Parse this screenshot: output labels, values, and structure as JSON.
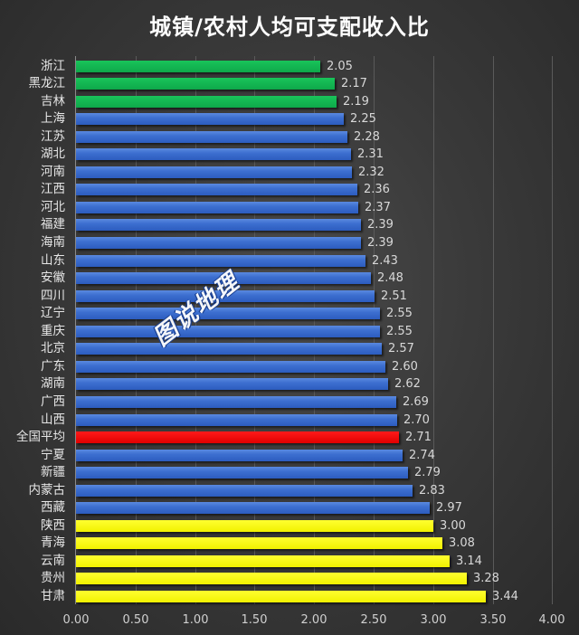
{
  "title": "城镇/农村人均可支配收入比",
  "watermark": "图说地理",
  "colors": {
    "green": "#12b851",
    "blue": "#3b6cd0",
    "red": "#ff0000",
    "yellow": "#ffff00",
    "background": "#3a3a3a",
    "text": "#e6e6e6"
  },
  "x_axis": {
    "ticks": [
      "0.00",
      "0.50",
      "1.00",
      "1.50",
      "2.00",
      "2.50",
      "3.00",
      "3.50",
      "4.00"
    ]
  },
  "chart_data": {
    "type": "bar",
    "orientation": "horizontal",
    "title": "城镇/农村人均可支配收入比",
    "xlabel": "",
    "ylabel": "",
    "xlim": [
      0,
      4
    ],
    "x_ticks": [
      0,
      0.5,
      1.0,
      1.5,
      2.0,
      2.5,
      3.0,
      3.5,
      4.0
    ],
    "grid": true,
    "legend": null,
    "categories": [
      "浙江",
      "黑龙江",
      "吉林",
      "上海",
      "江苏",
      "湖北",
      "河南",
      "江西",
      "河北",
      "福建",
      "海南",
      "山东",
      "安徽",
      "四川",
      "辽宁",
      "重庆",
      "北京",
      "广东",
      "湖南",
      "广西",
      "山西",
      "全国平均",
      "宁夏",
      "新疆",
      "内蒙古",
      "西藏",
      "陕西",
      "青海",
      "云南",
      "贵州",
      "甘肃"
    ],
    "values": [
      2.05,
      2.17,
      2.19,
      2.25,
      2.28,
      2.31,
      2.32,
      2.36,
      2.37,
      2.39,
      2.39,
      2.43,
      2.48,
      2.51,
      2.55,
      2.55,
      2.57,
      2.6,
      2.62,
      2.69,
      2.7,
      2.71,
      2.74,
      2.79,
      2.83,
      2.97,
      3.0,
      3.08,
      3.14,
      3.28,
      3.44
    ],
    "labels": [
      "2.05",
      "2.17",
      "2.19",
      "2.25",
      "2.28",
      "2.31",
      "2.32",
      "2.36",
      "2.37",
      "2.39",
      "2.39",
      "2.43",
      "2.48",
      "2.51",
      "2.55",
      "2.55",
      "2.57",
      "2.60",
      "2.62",
      "2.69",
      "2.70",
      "2.71",
      "2.74",
      "2.79",
      "2.83",
      "2.97",
      "3.00",
      "3.08",
      "3.14",
      "3.28",
      "3.44"
    ],
    "bar_colors": [
      "green",
      "green",
      "green",
      "blue",
      "blue",
      "blue",
      "blue",
      "blue",
      "blue",
      "blue",
      "blue",
      "blue",
      "blue",
      "blue",
      "blue",
      "blue",
      "blue",
      "blue",
      "blue",
      "blue",
      "blue",
      "red",
      "blue",
      "blue",
      "blue",
      "blue",
      "yellow",
      "yellow",
      "yellow",
      "yellow",
      "yellow"
    ]
  }
}
